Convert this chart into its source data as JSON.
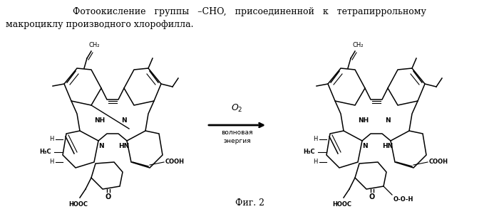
{
  "background_color": "#ffffff",
  "title_line1": "Фотоокисление   группы   –CHO,   присоединенной   к   тетрапиррольному",
  "title_line2": "макроциклу производного хлорофилла.",
  "arrow_label_top": "O₂",
  "arrow_label_bottom1": "волновая",
  "arrow_label_bottom2": "энергия",
  "caption": "Фиг. 2",
  "fig_width": 7.0,
  "fig_height": 3.01,
  "dpi": 100
}
